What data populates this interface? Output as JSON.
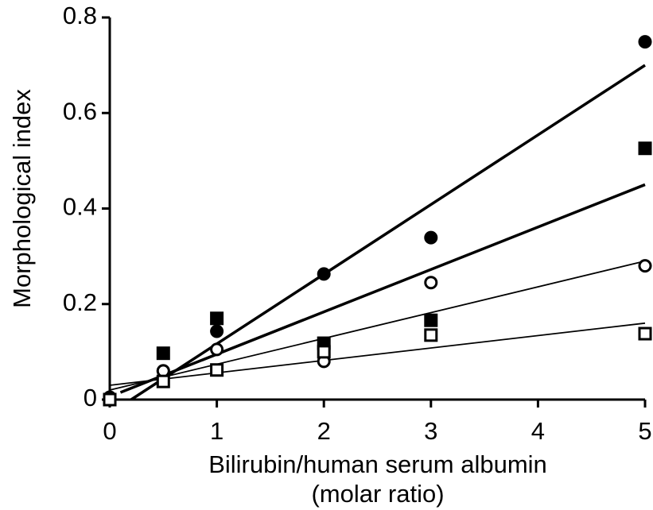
{
  "chart_data": {
    "type": "scatter",
    "xlabel": [
      "Bilirubin/human serum albumin",
      "(molar ratio)"
    ],
    "ylabel": "Morphological index",
    "xlim": [
      0,
      5
    ],
    "ylim": [
      0,
      0.8
    ],
    "xticks": [
      0,
      1,
      2,
      3,
      4,
      5
    ],
    "yticks": [
      0,
      0.2,
      0.4,
      0.6,
      0.8
    ],
    "color": "#000000",
    "series": [
      {
        "marker": "circle",
        "filled": true,
        "line_width": 3.5,
        "x": [
          0,
          0.5,
          1,
          2,
          3,
          5
        ],
        "values": [
          0,
          0.06,
          0.143,
          0.263,
          0.339,
          0.749
        ],
        "fit": {
          "x": [
            0.2,
            5
          ],
          "values": [
            0,
            0.7
          ]
        }
      },
      {
        "marker": "square",
        "filled": true,
        "line_width": 3.5,
        "x": [
          0,
          0.5,
          1,
          2,
          3,
          5
        ],
        "values": [
          0,
          0.097,
          0.17,
          0.118,
          0.166,
          0.526
        ],
        "fit": {
          "x": [
            0.1,
            5
          ],
          "values": [
            0.015,
            0.45
          ]
        }
      },
      {
        "marker": "circle",
        "filled": false,
        "line_width": 1.8,
        "x": [
          0,
          0.5,
          1,
          2,
          3,
          5
        ],
        "values": [
          0.005,
          0.06,
          0.105,
          0.08,
          0.245,
          0.28
        ],
        "fit": {
          "x": [
            0,
            5
          ],
          "values": [
            0.02,
            0.29
          ]
        }
      },
      {
        "marker": "square",
        "filled": false,
        "line_width": 1.8,
        "x": [
          0,
          0.5,
          1,
          2,
          3,
          5
        ],
        "values": [
          0,
          0.038,
          0.062,
          0.1,
          0.135,
          0.138
        ],
        "fit": {
          "x": [
            0,
            5
          ],
          "values": [
            0.03,
            0.16
          ]
        }
      }
    ]
  }
}
